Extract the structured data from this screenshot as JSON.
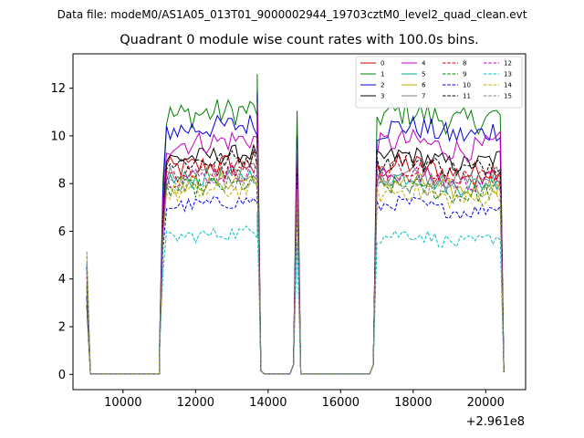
{
  "header": {
    "suptitle": "Data file: modeM0/AS1A05_013T01_9000002944_19703cztM0_level2_quad_clean.evt"
  },
  "chart_data": {
    "type": "line",
    "title": "Quadrant 0 module wise count rates with 100.0s bins.",
    "xlabel": "",
    "ylabel": "",
    "x_offset_label": "+2.961e8",
    "xlim": [
      8620,
      21100
    ],
    "ylim": [
      -0.64,
      13.44
    ],
    "xticks": [
      10000,
      12000,
      14000,
      16000,
      18000,
      20000
    ],
    "yticks": [
      0,
      2,
      4,
      6,
      8,
      10,
      12
    ],
    "grid": false,
    "legend": {
      "placement": "top-right",
      "ncol": 4
    },
    "series": [
      {
        "name": "0",
        "color": "#cc0000",
        "dash": false,
        "level": 8.6,
        "amp": 0.5
      },
      {
        "name": "1",
        "color": "#008000",
        "dash": false,
        "level": 10.8,
        "amp": 0.6
      },
      {
        "name": "2",
        "color": "#0000dd",
        "dash": false,
        "level": 10.2,
        "amp": 0.5
      },
      {
        "name": "3",
        "color": "#000000",
        "dash": false,
        "level": 9.0,
        "amp": 0.4
      },
      {
        "name": "4",
        "color": "#c000c0",
        "dash": false,
        "level": 9.6,
        "amp": 0.5
      },
      {
        "name": "5",
        "color": "#00b090",
        "dash": false,
        "level": 8.1,
        "amp": 0.4
      },
      {
        "name": "6",
        "color": "#c0b000",
        "dash": false,
        "level": 7.9,
        "amp": 0.4
      },
      {
        "name": "7",
        "color": "#808080",
        "dash": false,
        "level": 8.3,
        "amp": 0.4
      },
      {
        "name": "8",
        "color": "#cc0000",
        "dash": true,
        "level": 8.4,
        "amp": 0.4
      },
      {
        "name": "9",
        "color": "#008000",
        "dash": true,
        "level": 7.7,
        "amp": 0.4
      },
      {
        "name": "10",
        "color": "#0000dd",
        "dash": true,
        "level": 7.0,
        "amp": 0.3
      },
      {
        "name": "11",
        "color": "#000000",
        "dash": true,
        "level": 8.8,
        "amp": 0.4
      },
      {
        "name": "12",
        "color": "#c000c0",
        "dash": true,
        "level": 8.2,
        "amp": 0.4
      },
      {
        "name": "13",
        "color": "#00c0c0",
        "dash": true,
        "level": 5.7,
        "amp": 0.3
      },
      {
        "name": "14",
        "color": "#c0b000",
        "dash": true,
        "level": 7.5,
        "amp": 0.4
      },
      {
        "name": "15",
        "color": "#808080",
        "dash": true,
        "level": 7.8,
        "amp": 0.4
      }
    ],
    "segments": [
      {
        "start": 9000,
        "end": 9100,
        "kind": "decay"
      },
      {
        "start": 9100,
        "end": 11000,
        "kind": "zero"
      },
      {
        "start": 11000,
        "end": 13700,
        "kind": "on"
      },
      {
        "start": 13800,
        "end": 14700,
        "kind": "zero"
      },
      {
        "start": 14800,
        "end": 14800,
        "kind": "spike"
      },
      {
        "start": 14900,
        "end": 16900,
        "kind": "zero"
      },
      {
        "start": 17000,
        "end": 20400,
        "kind": "on"
      },
      {
        "start": 20500,
        "end": 20500,
        "kind": "end"
      }
    ]
  }
}
